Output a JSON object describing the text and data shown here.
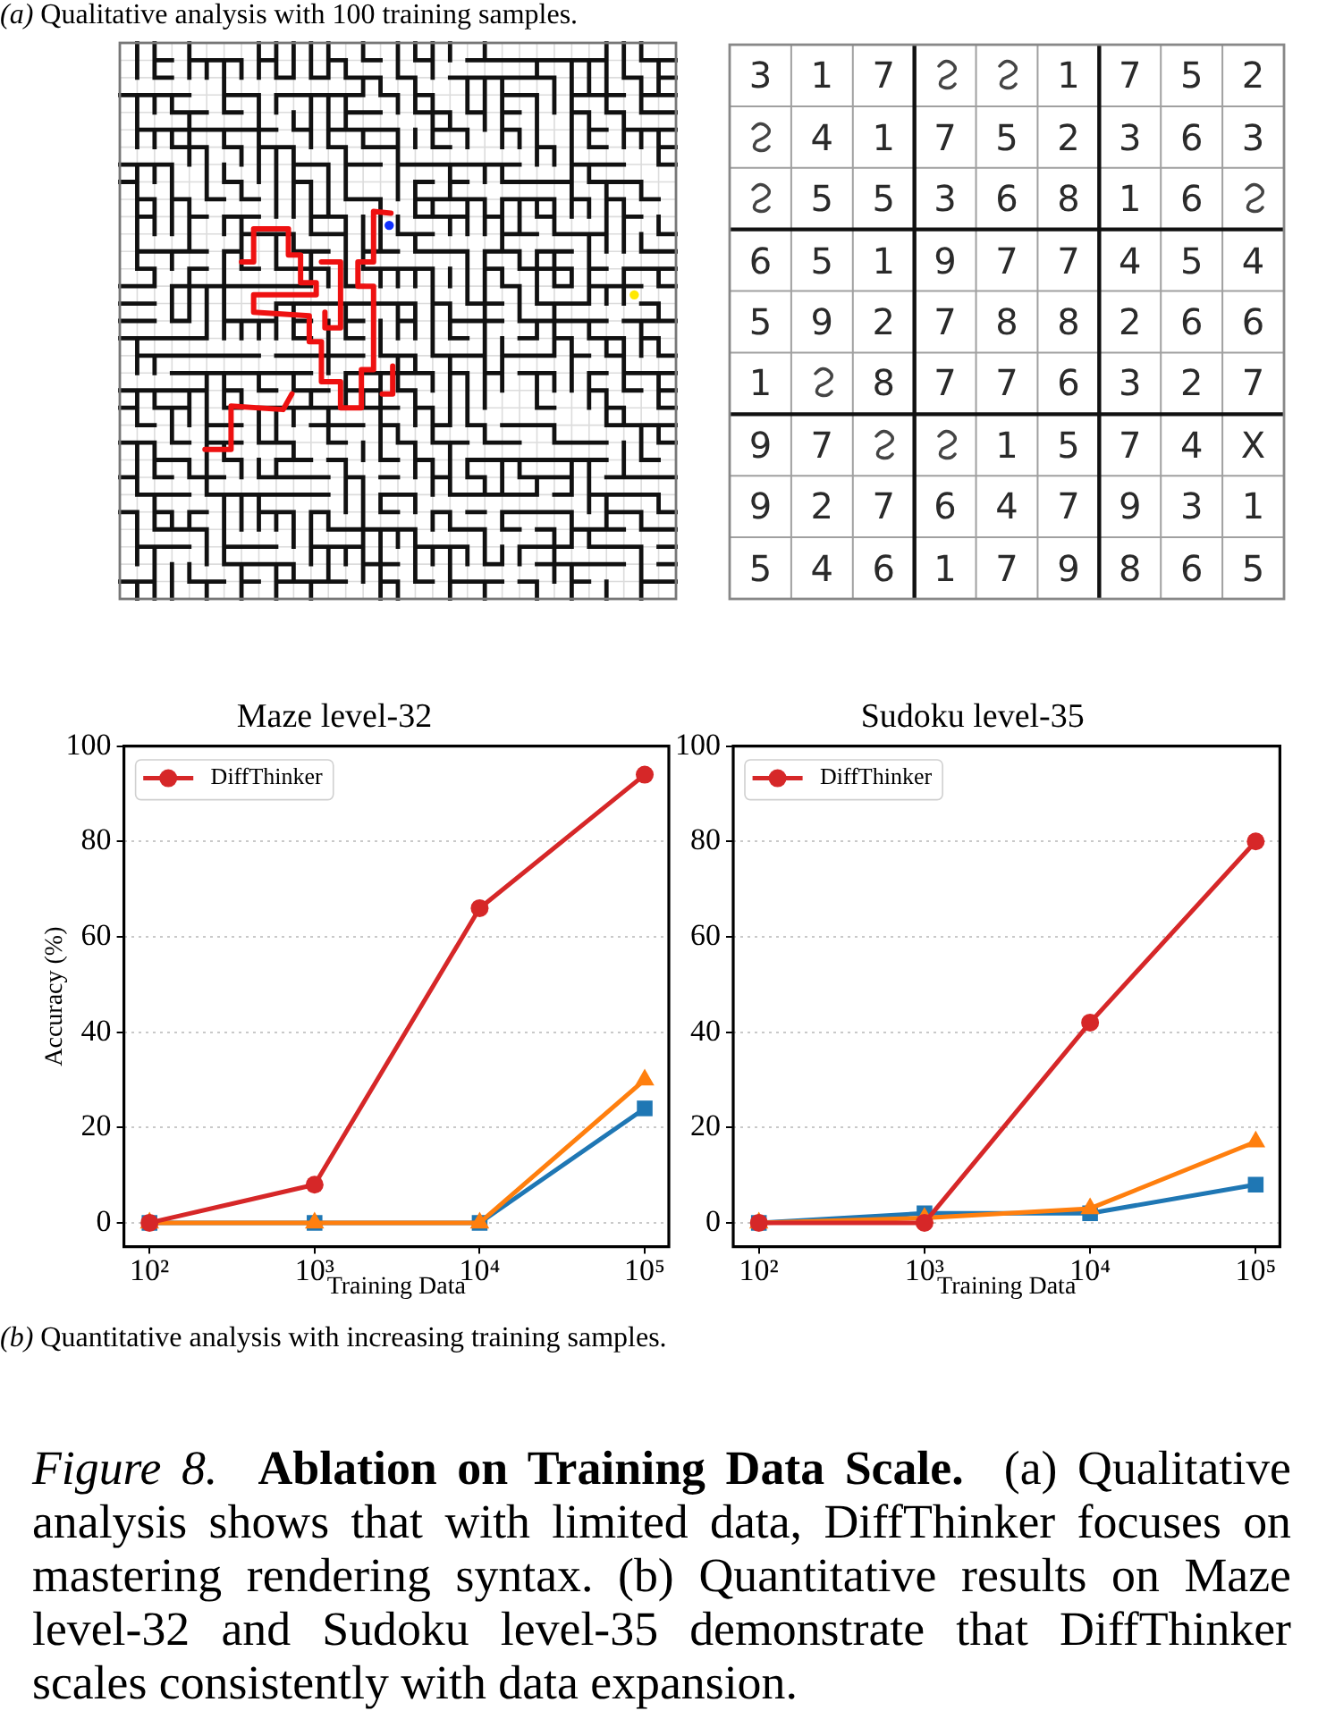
{
  "chart_data": [
    {
      "type": "other",
      "cell_labels": [
        [
          "3",
          "1",
          "7",
          null,
          null,
          "1",
          "7",
          "5",
          "2"
        ],
        [
          null,
          "4",
          "1",
          "7",
          "5",
          "2",
          "3",
          "6",
          "3"
        ],
        [
          null,
          "5",
          "5",
          "3",
          "6",
          "8",
          "1",
          "6",
          null
        ],
        [
          "6",
          "5",
          "1",
          "9",
          "7",
          "7",
          "4",
          "5",
          "4"
        ],
        [
          "5",
          "9",
          "2",
          "7",
          "8",
          "8",
          "2",
          "6",
          "6"
        ],
        [
          "1",
          null,
          "8",
          "7",
          "7",
          "6",
          "3",
          "2",
          "7"
        ],
        [
          "9",
          "7",
          null,
          null,
          "1",
          "5",
          "7",
          "4",
          "X"
        ],
        [
          "9",
          "2",
          "7",
          "6",
          "4",
          "7",
          "9",
          "3",
          "1"
        ],
        [
          "5",
          "4",
          "6",
          "1",
          "7",
          "9",
          "8",
          "6",
          "5"
        ]
      ],
      "annotations": [
        "(a)",
        "Qualitative analysis with 100 training samples."
      ]
    },
    {
      "type": "line",
      "title": "Maze level-32",
      "xlabel": "Training Data",
      "ylabel": "Accuracy (%)",
      "x": [
        100,
        1000,
        10000,
        100000
      ],
      "log": "x",
      "xlim": [
        70,
        140000
      ],
      "xticks": [
        {
          "value": 100,
          "label": "10²"
        },
        {
          "value": 1000,
          "label": "10³"
        },
        {
          "value": 10000,
          "label": "10⁴"
        },
        {
          "value": 100000,
          "label": "10⁵"
        }
      ],
      "ylim": [
        -5,
        100
      ],
      "yticks": [
        0,
        20,
        40,
        60,
        80,
        100
      ],
      "grid": "y",
      "legend": "top left",
      "series": [
        {
          "color": "#1f77b4",
          "marker": "square",
          "values": [
            0,
            0,
            0,
            24
          ]
        },
        {
          "color": "#ff7f0e",
          "marker": "triangle",
          "values": [
            0,
            0,
            0,
            30
          ]
        },
        {
          "name": "DiffThinker",
          "color": "#d62728",
          "marker": "circle",
          "values": [
            0,
            8,
            66,
            94
          ]
        }
      ]
    },
    {
      "type": "line",
      "title": "Sudoku level-35",
      "xlabel": "Training Data",
      "x": [
        100,
        1000,
        10000,
        100000
      ],
      "log": "x",
      "xlim": [
        70,
        140000
      ],
      "xticks": [
        {
          "value": 100,
          "label": "10²"
        },
        {
          "value": 1000,
          "label": "10³"
        },
        {
          "value": 10000,
          "label": "10⁴"
        },
        {
          "value": 100000,
          "label": "10⁵"
        }
      ],
      "ylim": [
        -5,
        100
      ],
      "yticks": [
        0,
        20,
        40,
        60,
        80,
        100
      ],
      "grid": "y",
      "legend": "top left",
      "series": [
        {
          "color": "#1f77b4",
          "marker": "square",
          "values": [
            0,
            2,
            2,
            8
          ]
        },
        {
          "color": "#ff7f0e",
          "marker": "triangle",
          "values": [
            0,
            1,
            3,
            17
          ]
        },
        {
          "name": "DiffThinker",
          "color": "#d62728",
          "marker": "circle",
          "values": [
            0,
            0,
            42,
            80
          ]
        }
      ]
    },
    {
      "type": "other",
      "annotations": [
        "(b)",
        "Quantitative analysis with increasing training samples.",
        "Figure 8.",
        "Ablation on Training Data Scale.",
        "(a) Qualitative",
        "analysis shows that with limited data, DiffThinker focuses on mastering rendering syntax. (b) Quantitative results on Maze level-32 and Sudoku level-35 demonstrate that DiffThinker scales consistently with data expansion."
      ]
    }
  ]
}
